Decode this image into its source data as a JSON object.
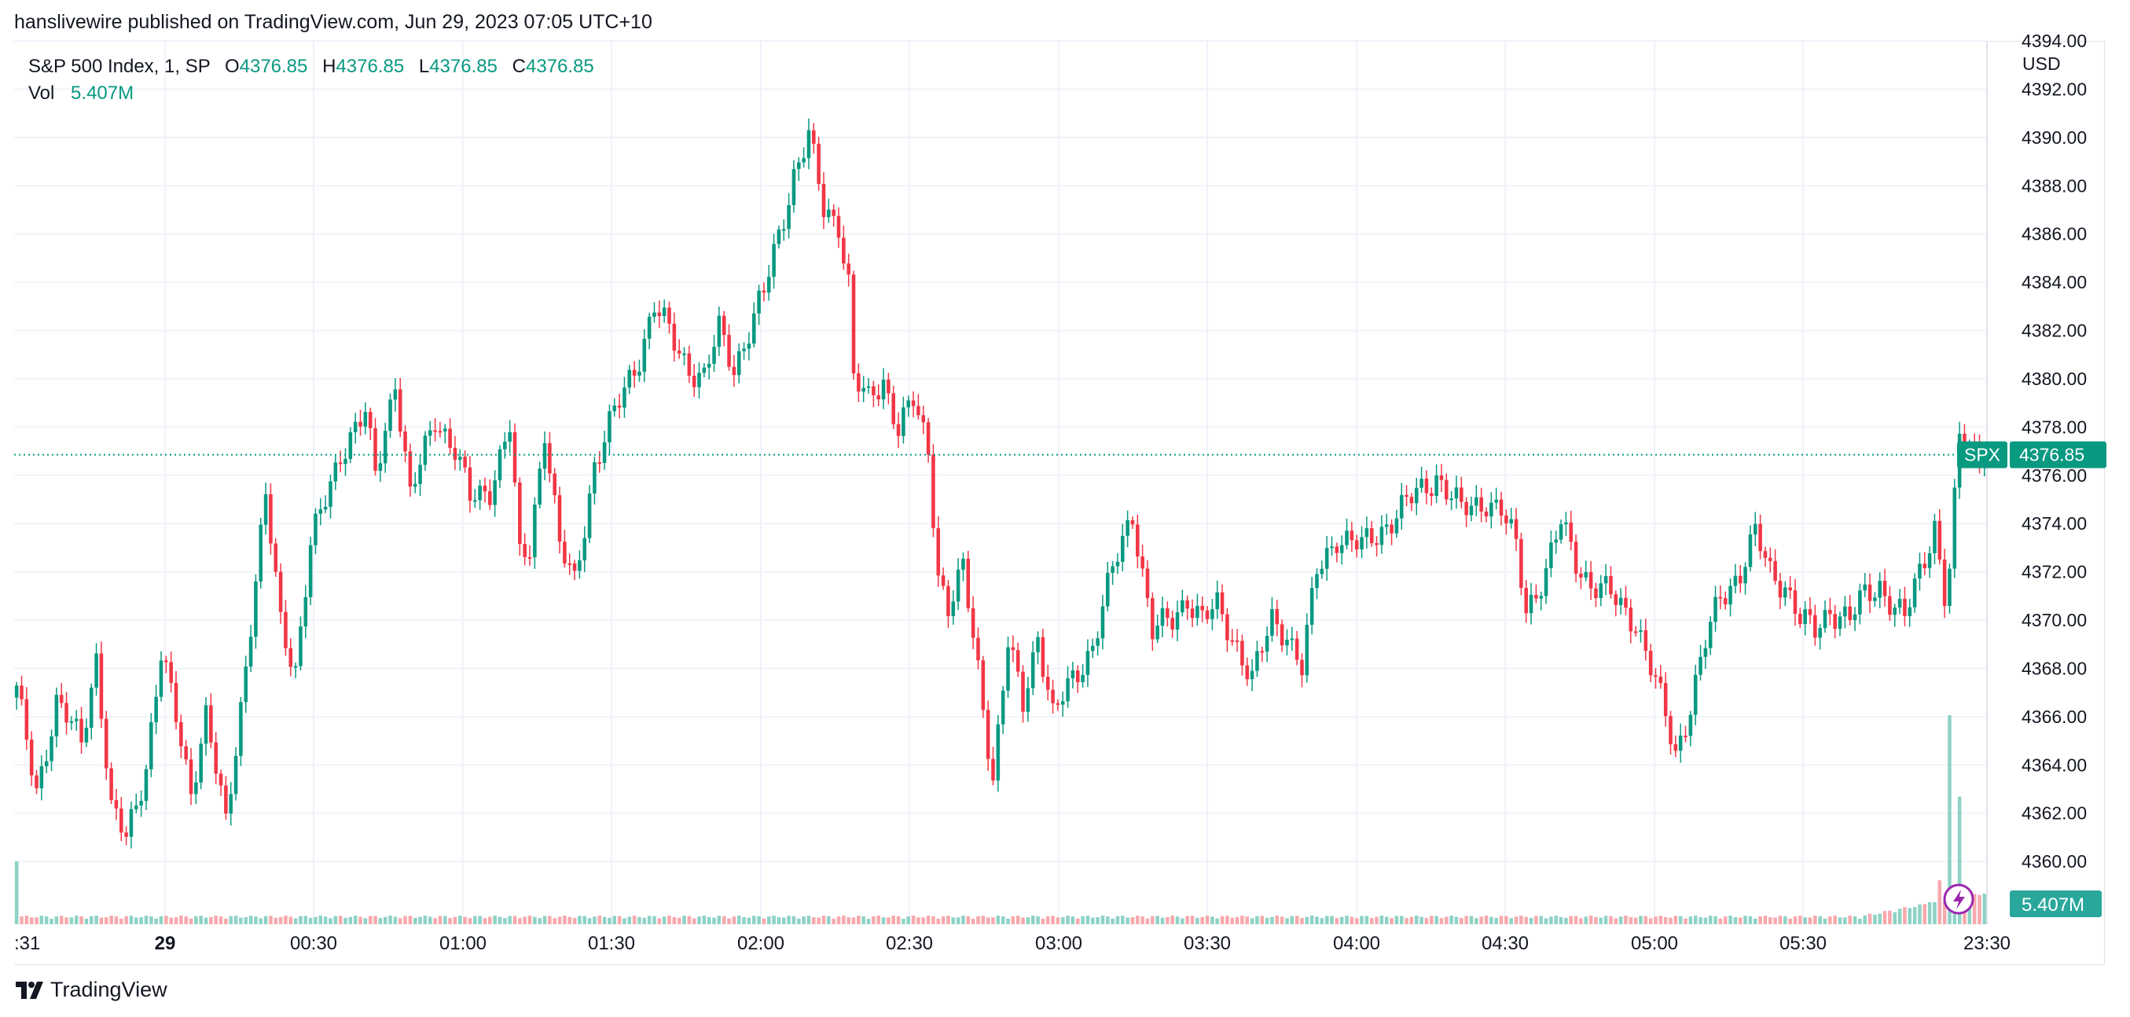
{
  "header": {
    "published": "hanslivewire published on TradingView.com, Jun 29, 2023 07:05 UTC+10"
  },
  "legend": {
    "symbol": "S&P 500 Index, 1, SP",
    "o_label": "O",
    "o_value": "4376.85",
    "h_label": "H",
    "h_value": "4376.85",
    "l_label": "L",
    "l_value": "4376.85",
    "c_label": "C",
    "c_value": "4376.85",
    "vol_label": "Vol",
    "vol_value": "5.407M"
  },
  "price_axis": {
    "currency": "USD",
    "last_symbol_tag": "SPX",
    "last_price_tag": "4376.85",
    "volume_tag": "5.407M"
  },
  "footer": {
    "brand": "TradingView"
  },
  "colors": {
    "up": "#089981",
    "down": "#f23645",
    "up_vol": "#8ed3c5",
    "down_vol": "#f7a9ad",
    "grid": "#f0f3fa",
    "text": "#131722"
  },
  "icons": {
    "replay": "lightning-icon",
    "logo": "tradingview-logo-icon"
  },
  "chart_data": {
    "type": "candlestick",
    "timeframe": "1 minute",
    "y_range": [
      4357.4,
      4394
    ],
    "y_ticks": [
      4360,
      4362,
      4364,
      4366,
      4368,
      4370,
      4372,
      4374,
      4376,
      4378,
      4380,
      4382,
      4384,
      4386,
      4388,
      4390,
      4392,
      4394
    ],
    "y_tick_labels": [
      "4360.00",
      "4362.00",
      "4364.00",
      "4366.00",
      "4368.00",
      "4370.00",
      "4372.00",
      "4374.00",
      "4376.00",
      "4378.00",
      "4380.00",
      "4382.00",
      "4384.00",
      "4386.00",
      "4388.00",
      "4390.00",
      "4392.00",
      "4394.00"
    ],
    "x_tick_labels": [
      ":31",
      "29",
      "00:30",
      "01:00",
      "01:30",
      "02:00",
      "02:30",
      "03:00",
      "03:30",
      "04:00",
      "04:30",
      "05:00",
      "05:30",
      "23:30"
    ],
    "last_price": 4376.85,
    "path": [
      [
        0,
        4367.0
      ],
      [
        4,
        4363.0
      ],
      [
        8,
        4366.5
      ],
      [
        13,
        4365.0
      ],
      [
        16,
        4368.5
      ],
      [
        19,
        4362.0
      ],
      [
        22,
        4361.0
      ],
      [
        26,
        4364.0
      ],
      [
        29,
        4368.5
      ],
      [
        32,
        4366.0
      ],
      [
        35,
        4363.0
      ],
      [
        38,
        4366.0
      ],
      [
        42,
        4361.5
      ],
      [
        45,
        4366.5
      ],
      [
        50,
        4375.0
      ],
      [
        53,
        4370.0
      ],
      [
        56,
        4368.0
      ],
      [
        59,
        4373.0
      ],
      [
        65,
        4377.0
      ],
      [
        70,
        4378.5
      ],
      [
        72,
        4376.0
      ],
      [
        76,
        4380.0
      ],
      [
        79,
        4375.0
      ],
      [
        84,
        4378.5
      ],
      [
        88,
        4377.0
      ],
      [
        91,
        4375.0
      ],
      [
        95,
        4375.5
      ],
      [
        99,
        4378.0
      ],
      [
        101,
        4372.5
      ],
      [
        103,
        4373.0
      ],
      [
        106,
        4378.0
      ],
      [
        109,
        4373.0
      ],
      [
        112,
        4371.5
      ],
      [
        116,
        4376.5
      ],
      [
        120,
        4378.5
      ],
      [
        123,
        4380.0
      ],
      [
        125,
        4381.0
      ],
      [
        128,
        4383.0
      ],
      [
        132,
        4381.5
      ],
      [
        135,
        4380.5
      ],
      [
        138,
        4380.0
      ],
      [
        141,
        4382.0
      ],
      [
        144,
        4380.5
      ],
      [
        147,
        4382.0
      ],
      [
        150,
        4383.5
      ],
      [
        153,
        4386.0
      ],
      [
        156,
        4388.5
      ],
      [
        159,
        4390.0
      ],
      [
        162,
        4387.0
      ],
      [
        165,
        4386.5
      ],
      [
        167,
        4384.0
      ],
      [
        168,
        4380.0
      ],
      [
        171,
        4379.0
      ],
      [
        174,
        4380.0
      ],
      [
        177,
        4378.0
      ],
      [
        180,
        4379.0
      ],
      [
        183,
        4377.0
      ],
      [
        185,
        4372.0
      ],
      [
        187,
        4370.5
      ],
      [
        190,
        4372.0
      ],
      [
        193,
        4368.0
      ],
      [
        196,
        4363.5
      ],
      [
        199,
        4369.0
      ],
      [
        202,
        4366.5
      ],
      [
        205,
        4369.5
      ],
      [
        208,
        4366.0
      ],
      [
        212,
        4367.5
      ],
      [
        216,
        4369.0
      ],
      [
        220,
        4372.0
      ],
      [
        224,
        4374.5
      ],
      [
        226,
        4372.0
      ],
      [
        228,
        4369.5
      ],
      [
        232,
        4370.0
      ],
      [
        235,
        4371.0
      ],
      [
        238,
        4370.0
      ],
      [
        241,
        4370.5
      ],
      [
        245,
        4369.0
      ],
      [
        248,
        4367.5
      ],
      [
        252,
        4370.0
      ],
      [
        255,
        4369.5
      ],
      [
        258,
        4368.0
      ],
      [
        261,
        4372.0
      ],
      [
        265,
        4373.5
      ],
      [
        270,
        4373.0
      ],
      [
        275,
        4374.0
      ],
      [
        280,
        4375.0
      ],
      [
        285,
        4376.0
      ],
      [
        290,
        4374.5
      ],
      [
        295,
        4375.0
      ],
      [
        298,
        4374.5
      ],
      [
        301,
        4373.0
      ],
      [
        303,
        4370.5
      ],
      [
        307,
        4372.0
      ],
      [
        310,
        4374.0
      ],
      [
        313,
        4372.5
      ],
      [
        316,
        4371.5
      ],
      [
        320,
        4371.0
      ],
      [
        325,
        4370.0
      ],
      [
        328,
        4368.0
      ],
      [
        331,
        4366.0
      ],
      [
        333,
        4364.5
      ],
      [
        336,
        4366.5
      ],
      [
        339,
        4369.0
      ],
      [
        342,
        4371.0
      ],
      [
        346,
        4372.0
      ],
      [
        349,
        4373.5
      ],
      [
        352,
        4372.0
      ],
      [
        355,
        4371.5
      ],
      [
        358,
        4370.0
      ],
      [
        361,
        4369.5
      ],
      [
        364,
        4370.5
      ],
      [
        368,
        4370.0
      ],
      [
        371,
        4371.0
      ],
      [
        374,
        4371.5
      ],
      [
        377,
        4370.5
      ],
      [
        379,
        4370.0
      ],
      [
        382,
        4372.0
      ],
      [
        385,
        4374.0
      ],
      [
        387,
        4371.0
      ],
      [
        388,
        4372.0
      ],
      [
        390,
        4377.5
      ],
      [
        393,
        4377.0
      ]
    ],
    "volume_spikes": [
      [
        388,
        0.95
      ],
      [
        389,
        0.18
      ],
      [
        390,
        0.58
      ],
      [
        386,
        0.2
      ],
      [
        384,
        0.1
      ]
    ]
  }
}
